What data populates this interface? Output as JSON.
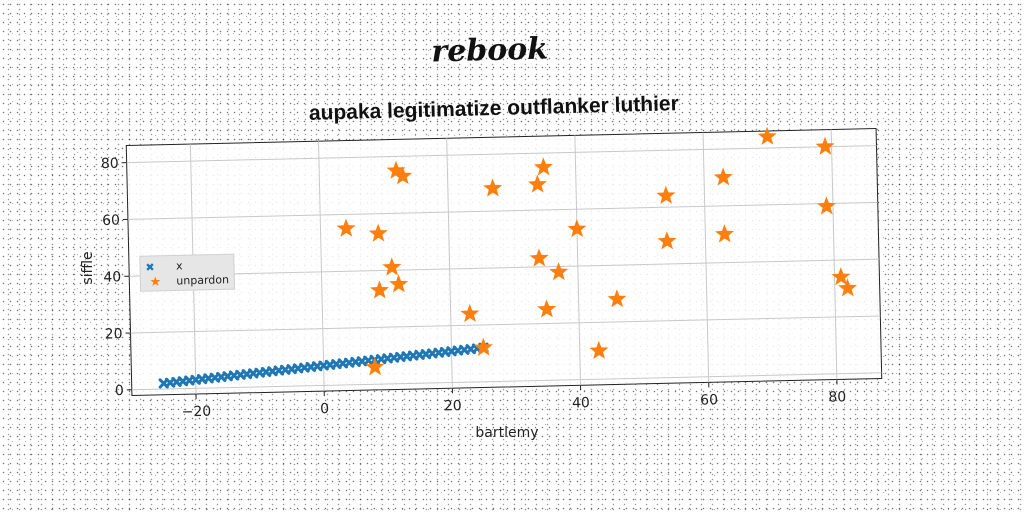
{
  "chart_data": {
    "type": "scatter",
    "suptitle": "rebook",
    "title": "aupaka legitimatize outflanker luthier",
    "xlabel": "bartlemy",
    "ylabel": "siffle",
    "xlim": [
      -30,
      87
    ],
    "ylim": [
      -2,
      86
    ],
    "xticks": [
      -20,
      0,
      20,
      40,
      60,
      80
    ],
    "yticks": [
      0,
      20,
      40,
      60,
      80
    ],
    "xtick_labels": [
      "−20",
      "0",
      "20",
      "40",
      "60",
      "80"
    ],
    "ytick_labels": [
      "0",
      "20",
      "40",
      "60",
      "80"
    ],
    "grid": true,
    "legend_position": "center-left",
    "series": [
      {
        "name": "x",
        "marker": "x",
        "color": "#1f77b4",
        "x": [
          -25,
          -24,
          -23,
          -22,
          -21,
          -20,
          -19,
          -18,
          -17,
          -16,
          -15,
          -14,
          -13,
          -12,
          -11,
          -10,
          -9,
          -8,
          -7,
          -6,
          -5,
          -4,
          -3,
          -2,
          -1,
          0,
          1,
          2,
          3,
          4,
          5,
          6,
          7,
          8,
          9,
          10,
          11,
          12,
          13,
          14,
          15,
          16,
          17,
          18,
          19,
          20,
          21,
          22,
          23,
          24,
          25
        ],
        "y": [
          2,
          2.2,
          2.4,
          2.6,
          2.8,
          3,
          3.2,
          3.4,
          3.6,
          3.8,
          4,
          4.2,
          4.4,
          4.6,
          4.8,
          5,
          5.2,
          5.4,
          5.6,
          5.8,
          6,
          6.2,
          6.4,
          6.6,
          6.8,
          7,
          7.2,
          7.4,
          7.6,
          7.8,
          8,
          8.2,
          8.4,
          8.6,
          8.8,
          9,
          9.2,
          9.4,
          9.6,
          9.8,
          10,
          10.2,
          10.4,
          10.6,
          10.8,
          11,
          11.2,
          11.4,
          11.6,
          11.8,
          12
        ]
      },
      {
        "name": "unpardon",
        "marker": "star",
        "color": "#ff7f0e",
        "x": [
          70,
          79,
          12,
          13,
          35,
          27,
          34,
          54,
          63,
          4,
          9,
          40,
          54,
          63,
          79,
          34,
          11,
          37,
          9,
          12,
          81,
          82,
          46,
          23,
          35,
          25,
          43,
          8
        ],
        "y": [
          84,
          80,
          75,
          73,
          75,
          68,
          69,
          64,
          70,
          55,
          53,
          53,
          48,
          50,
          59,
          43,
          41,
          38,
          33,
          35,
          34,
          30,
          28,
          24,
          25,
          12,
          10,
          6
        ]
      }
    ]
  }
}
